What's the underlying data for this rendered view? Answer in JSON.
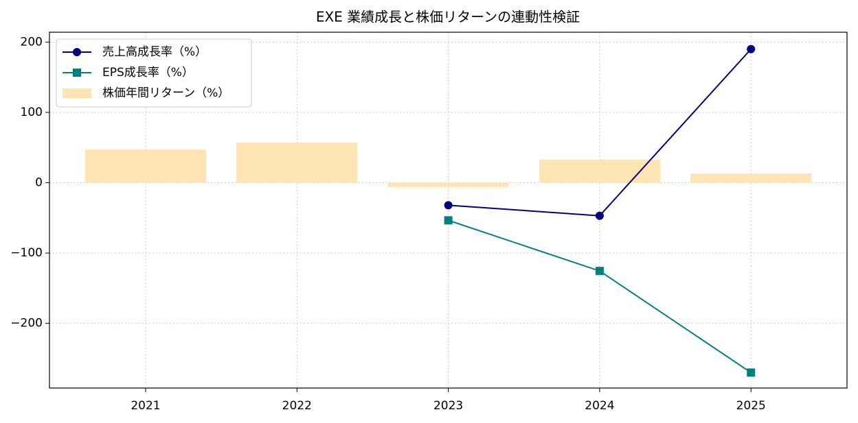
{
  "chart_data": {
    "type": "bar",
    "title": "EXE 業績成長と株価リターンの連動性検証",
    "categories": [
      "2021",
      "2022",
      "2023",
      "2024",
      "2025"
    ],
    "series": [
      {
        "name": "売上高成長率（%）",
        "type": "line",
        "marker": "circle",
        "color": "#000080",
        "values": [
          null,
          null,
          -32,
          -47,
          190
        ]
      },
      {
        "name": "EPS成長率（%）",
        "type": "line",
        "marker": "square",
        "color": "#008080",
        "values": [
          null,
          null,
          -53.5,
          -125.5,
          -270
        ]
      },
      {
        "name": "株価年間リターン（%）",
        "type": "bar",
        "color": "#ffe4b3",
        "values": [
          47,
          57,
          -6,
          33,
          13
        ]
      }
    ],
    "ylim": [
      -292,
      214
    ],
    "yticks": [
      {
        "value": -200,
        "label": "−200"
      },
      {
        "value": -100,
        "label": "−100"
      },
      0,
      100,
      200
    ],
    "grid": true,
    "legend": "upper left"
  }
}
